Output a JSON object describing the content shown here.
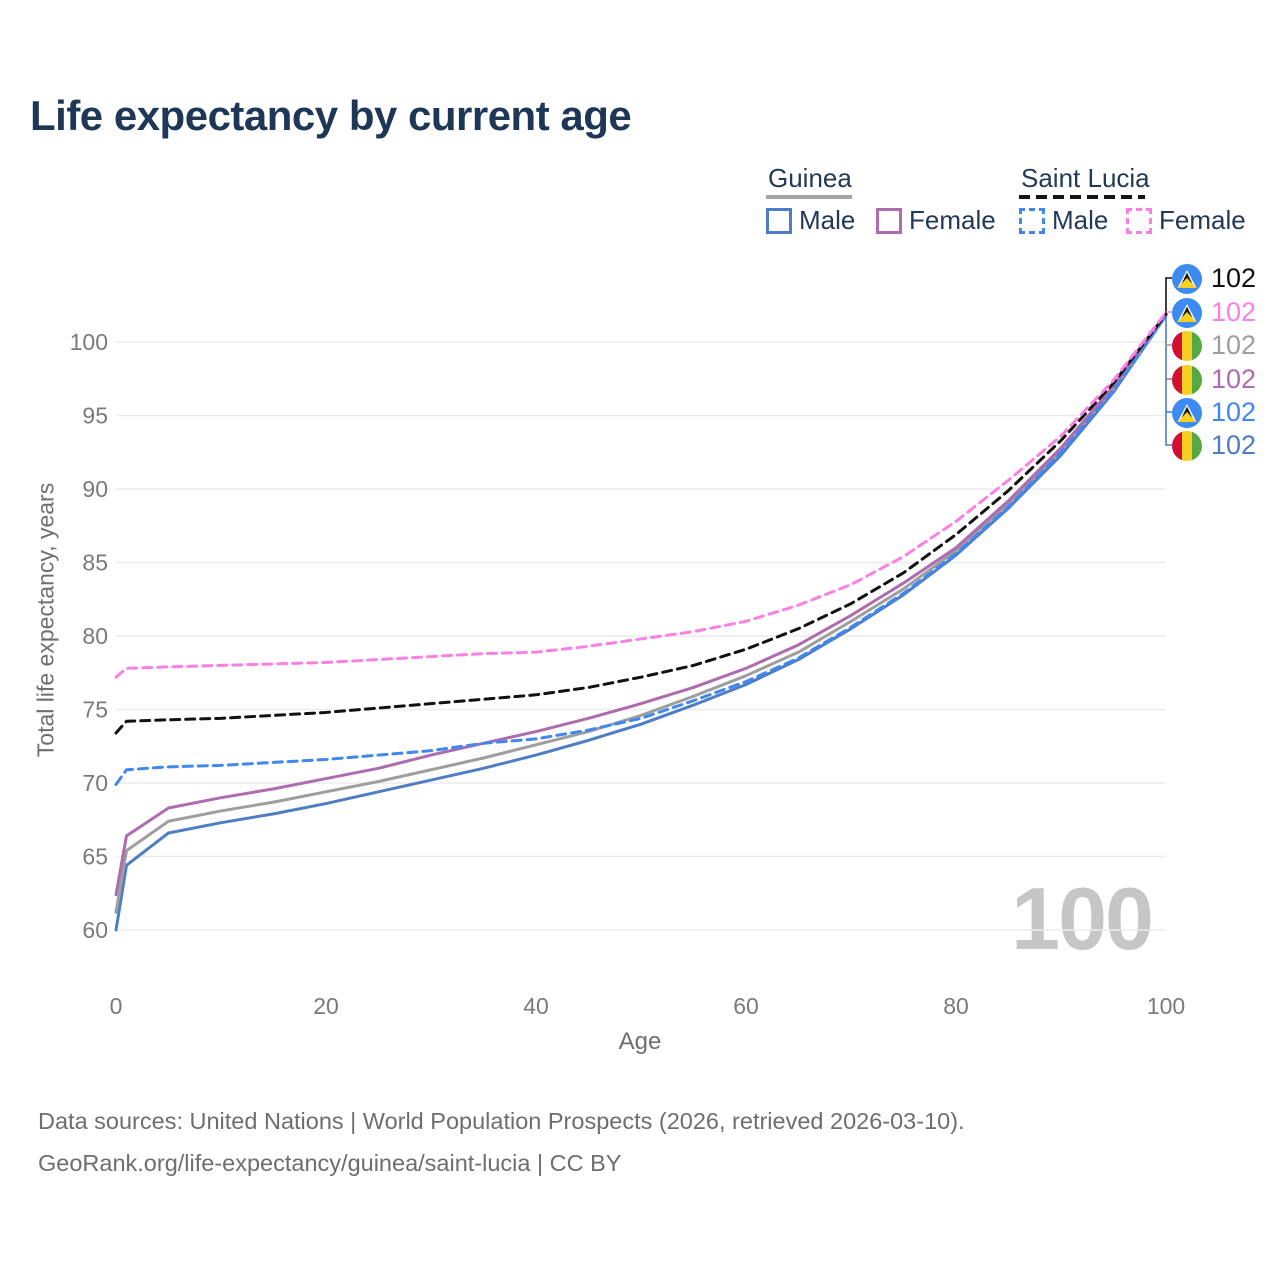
{
  "title": "Life expectancy by current age",
  "legend": {
    "groups": [
      {
        "label": "Guinea",
        "line_style": "solid",
        "underline_color": "#a6a6a6",
        "items": [
          {
            "label": "Male",
            "color": "#4e7dc6"
          },
          {
            "label": "Female",
            "color": "#ae6bb0"
          }
        ]
      },
      {
        "label": "Saint Lucia",
        "line_style": "dashed",
        "underline_color": "#141414",
        "items": [
          {
            "label": "Male",
            "color": "#4187f2"
          },
          {
            "label": "Female",
            "color": "#fb80e4"
          }
        ]
      }
    ]
  },
  "watermark": "100",
  "end_labels": [
    {
      "flag": "saint-lucia",
      "series": "Saint Lucia",
      "value": "102",
      "color": "#111111"
    },
    {
      "flag": "saint-lucia",
      "series": "Saint Lucia Female",
      "value": "102",
      "color": "#fb80e4"
    },
    {
      "flag": "guinea",
      "series": "Guinea",
      "value": "102",
      "color": "#9e9e9e"
    },
    {
      "flag": "guinea",
      "series": "Guinea Female",
      "value": "102",
      "color": "#ae6bb0"
    },
    {
      "flag": "saint-lucia",
      "series": "Saint Lucia Male",
      "value": "102",
      "color": "#4187f2"
    },
    {
      "flag": "guinea",
      "series": "Guinea Male",
      "value": "102",
      "color": "#4e7dc6"
    }
  ],
  "footer": {
    "line1": "Data sources: United Nations | World Population Prospects (2026, retrieved 2026-03-10).",
    "line2": "GeoRank.org/life-expectancy/guinea/saint-lucia | CC BY"
  },
  "chart_data": {
    "type": "line",
    "title": "Life expectancy by current age",
    "xlabel": "Age",
    "ylabel": "Total life expectancy, years",
    "xlim": [
      0,
      100
    ],
    "ylim": [
      58.5,
      103
    ],
    "x_ticks": [
      0,
      20,
      40,
      60,
      80,
      100
    ],
    "y_ticks": [
      60,
      65,
      70,
      75,
      80,
      85,
      90,
      95,
      100
    ],
    "grid": "horizontal",
    "legend_position": "top-right",
    "x": [
      0,
      1,
      5,
      10,
      15,
      20,
      25,
      30,
      35,
      40,
      45,
      50,
      55,
      60,
      65,
      70,
      75,
      80,
      85,
      90,
      95,
      100
    ],
    "series": [
      {
        "name": "Guinea Male",
        "color": "#4e7dc6",
        "dash": false,
        "values": [
          60.0,
          64.4,
          66.6,
          67.3,
          67.9,
          68.6,
          69.4,
          70.2,
          71.0,
          71.9,
          72.9,
          74.0,
          75.3,
          76.7,
          78.4,
          80.5,
          82.8,
          85.5,
          88.7,
          92.3,
          96.6,
          101.8
        ]
      },
      {
        "name": "Guinea",
        "color": "#9e9e9e",
        "dash": false,
        "values": [
          61.2,
          65.4,
          67.4,
          68.1,
          68.7,
          69.4,
          70.1,
          70.9,
          71.7,
          72.6,
          73.5,
          74.6,
          75.9,
          77.3,
          78.9,
          81.0,
          83.2,
          85.8,
          89.0,
          92.6,
          96.8,
          101.8
        ]
      },
      {
        "name": "Guinea Female",
        "color": "#ae6bb0",
        "dash": false,
        "values": [
          62.4,
          66.4,
          68.3,
          69.0,
          69.6,
          70.3,
          71.0,
          71.9,
          72.7,
          73.5,
          74.4,
          75.4,
          76.5,
          77.8,
          79.4,
          81.4,
          83.6,
          86.0,
          89.2,
          92.8,
          97.0,
          101.9
        ]
      },
      {
        "name": "Saint Lucia Male",
        "color": "#4187f2",
        "dash": true,
        "values": [
          69.9,
          70.9,
          71.1,
          71.2,
          71.4,
          71.6,
          71.9,
          72.2,
          72.7,
          73.0,
          73.6,
          74.4,
          75.6,
          76.9,
          78.5,
          80.6,
          82.9,
          85.6,
          88.8,
          92.5,
          96.7,
          101.8
        ]
      },
      {
        "name": "Saint Lucia",
        "color": "#111111",
        "dash": true,
        "values": [
          73.4,
          74.2,
          74.3,
          74.4,
          74.6,
          74.8,
          75.1,
          75.4,
          75.7,
          76.0,
          76.5,
          77.2,
          78.0,
          79.1,
          80.5,
          82.2,
          84.3,
          86.9,
          89.9,
          93.3,
          97.2,
          101.9
        ]
      },
      {
        "name": "Saint Lucia Female",
        "color": "#fb80e4",
        "dash": true,
        "values": [
          77.2,
          77.8,
          77.9,
          78.0,
          78.1,
          78.2,
          78.4,
          78.6,
          78.8,
          78.9,
          79.3,
          79.8,
          80.3,
          81.0,
          82.1,
          83.5,
          85.4,
          87.8,
          90.6,
          93.6,
          97.4,
          102.0
        ]
      }
    ]
  }
}
